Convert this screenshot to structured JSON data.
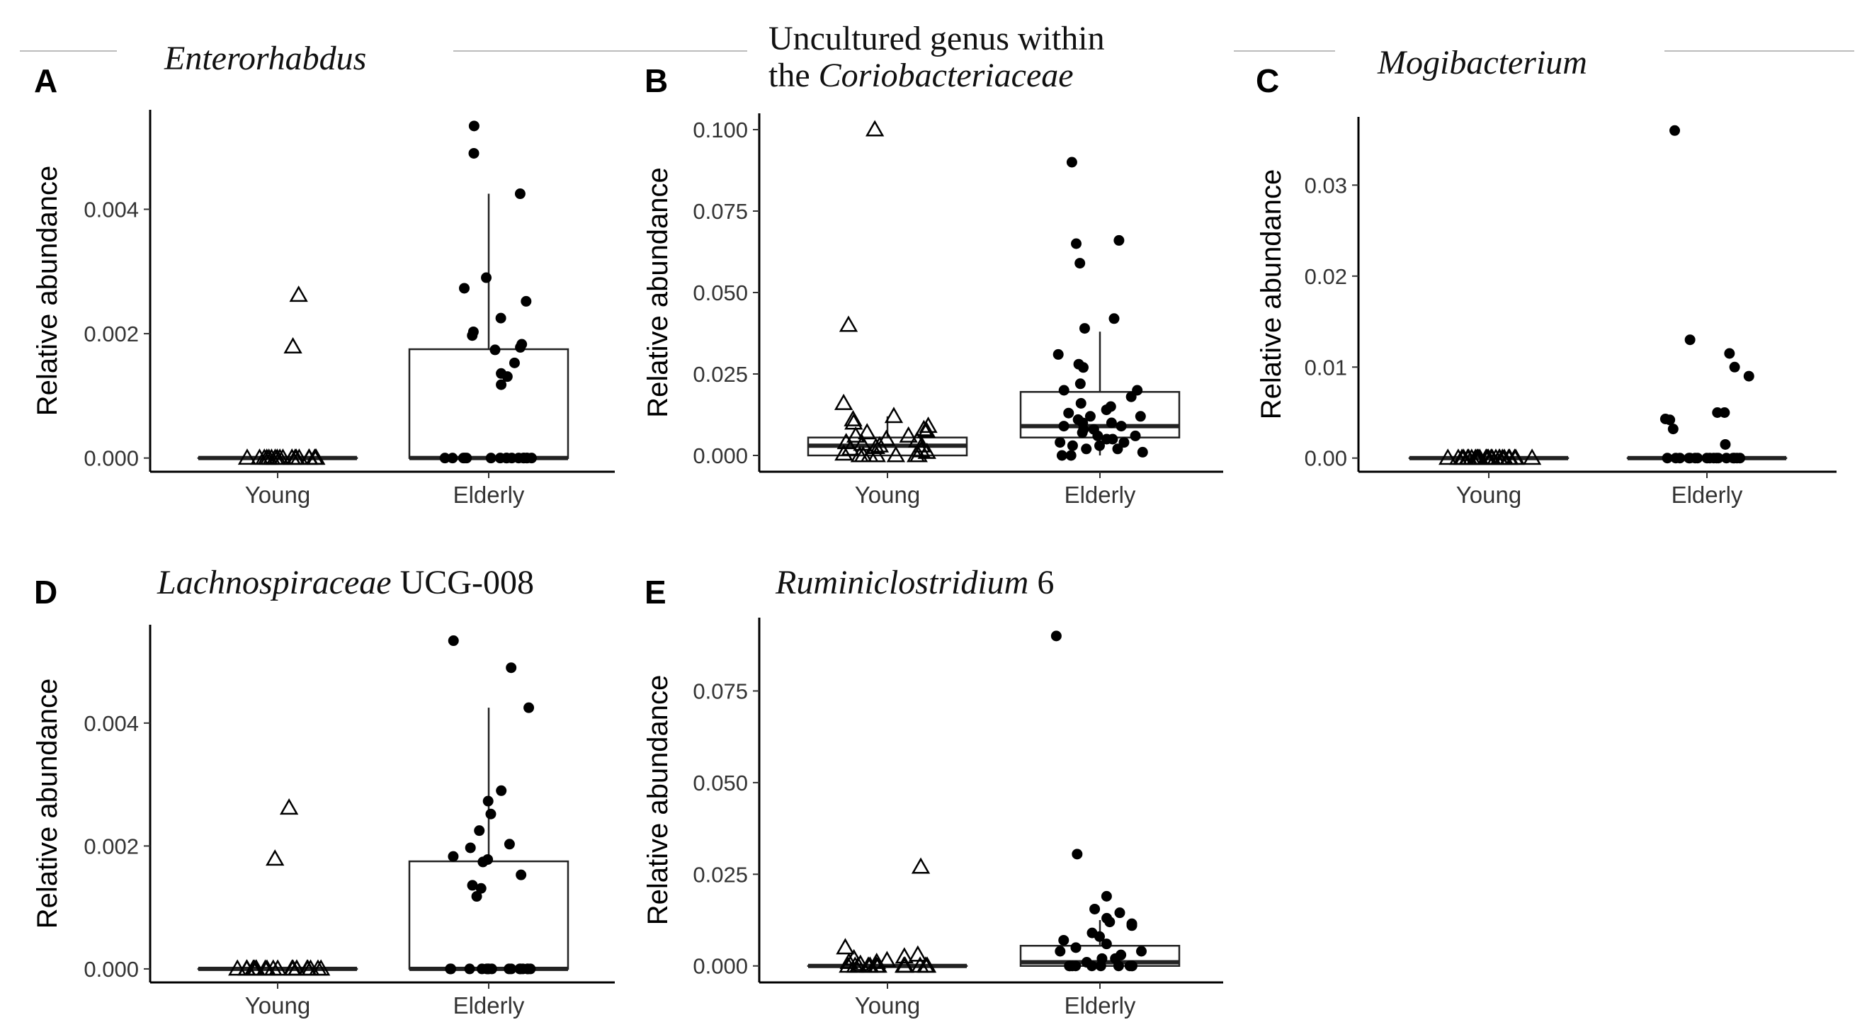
{
  "figure": {
    "panels": [
      "A",
      "B",
      "C",
      "D",
      "E"
    ]
  },
  "chart_data": [
    {
      "id": "A",
      "type": "box",
      "label": "A",
      "title": [
        [
          {
            "text": "Enterorhabdus",
            "italic": true
          }
        ]
      ],
      "ylabel": "Relative abundance",
      "categories": [
        "Young",
        "Elderly"
      ],
      "ylim": [
        -0.00022,
        0.0056
      ],
      "yticks": [
        0,
        0.002,
        0.004
      ],
      "ytick_labels": [
        "0.000",
        "0.002",
        "0.004"
      ],
      "series": [
        {
          "name": "Young",
          "marker": "triangle-open",
          "box": {
            "q1": 0,
            "median": 0,
            "q3": 0,
            "whisker_low": 0,
            "whisker_high": 0
          },
          "points": [
            0.00262,
            0.00179,
            0,
            0,
            0,
            0,
            0,
            0,
            0,
            0,
            0,
            0,
            0,
            0,
            0,
            0,
            0,
            0,
            0,
            0,
            0,
            0
          ]
        },
        {
          "name": "Elderly",
          "marker": "circle-filled",
          "box": {
            "q1": 0,
            "median": 0,
            "q3": 0.00175,
            "whisker_low": 0,
            "whisker_high": 0.00425
          },
          "points": [
            0.00534,
            0.0049,
            0.00425,
            0.0029,
            0.00273,
            0.00252,
            0.00225,
            0.00203,
            0.00197,
            0.00183,
            0.00178,
            0.00174,
            0.00153,
            0.00136,
            0.00131,
            0.00118,
            0,
            0,
            0,
            0,
            0,
            0,
            0,
            0,
            0,
            0,
            0,
            0,
            0,
            0,
            0,
            0
          ]
        }
      ]
    },
    {
      "id": "B",
      "type": "box",
      "label": "B",
      "title": [
        [
          {
            "text": "Uncultured genus within",
            "italic": false
          }
        ],
        [
          {
            "text": "the ",
            "italic": false
          },
          {
            "text": "Coriobacteriaceae",
            "italic": true
          }
        ]
      ],
      "ylabel": "Relative abundance",
      "categories": [
        "Young",
        "Elderly"
      ],
      "ylim": [
        -0.005,
        0.105
      ],
      "yticks": [
        0,
        0.025,
        0.05,
        0.075,
        0.1
      ],
      "ytick_labels": [
        "0.000",
        "0.025",
        "0.050",
        "0.075",
        "0.100"
      ],
      "series": [
        {
          "name": "Young",
          "marker": "triangle-open",
          "box": {
            "q1": 0,
            "median": 0.003,
            "q3": 0.0055,
            "whisker_low": 0,
            "whisker_high": 0.012
          },
          "points": [
            0.1,
            0.04,
            0.016,
            0.012,
            0.011,
            0.01,
            0.009,
            0.008,
            0.0075,
            0.007,
            0.006,
            0.006,
            0.005,
            0.0045,
            0.004,
            0.0035,
            0.003,
            0.003,
            0.0025,
            0.002,
            0.0015,
            0.001,
            0.0005,
            0,
            0,
            0,
            0,
            0,
            0,
            0
          ]
        },
        {
          "name": "Elderly",
          "marker": "circle-filled",
          "box": {
            "q1": 0.0055,
            "median": 0.009,
            "q3": 0.0195,
            "whisker_low": 0,
            "whisker_high": 0.038
          },
          "points": [
            0.09,
            0.066,
            0.065,
            0.059,
            0.042,
            0.039,
            0.031,
            0.028,
            0.027,
            0.022,
            0.02,
            0.02,
            0.018,
            0.016,
            0.015,
            0.014,
            0.013,
            0.012,
            0.012,
            0.011,
            0.01,
            0.01,
            0.009,
            0.009,
            0.008,
            0.008,
            0.007,
            0.006,
            0.006,
            0.005,
            0.005,
            0.004,
            0.004,
            0.003,
            0.003,
            0.002,
            0.002,
            0.001,
            0,
            0
          ]
        }
      ]
    },
    {
      "id": "C",
      "type": "box",
      "label": "C",
      "title": [
        [
          {
            "text": "Mogibacterium",
            "italic": true
          }
        ]
      ],
      "ylabel": "Relative abundance",
      "categories": [
        "Young",
        "Elderly"
      ],
      "ylim": [
        -0.0015,
        0.0375
      ],
      "yticks": [
        0,
        0.01,
        0.02,
        0.03
      ],
      "ytick_labels": [
        "0.00",
        "0.01",
        "0.02",
        "0.03"
      ],
      "series": [
        {
          "name": "Young",
          "marker": "triangle-open",
          "box": {
            "q1": 0,
            "median": 0,
            "q3": 0,
            "whisker_low": 0,
            "whisker_high": 0
          },
          "points": [
            0,
            0,
            0,
            0,
            0,
            0,
            0,
            0,
            0,
            0,
            0,
            0,
            0,
            0,
            0,
            0,
            0,
            0,
            0,
            0,
            0,
            0,
            0,
            0,
            0,
            0
          ]
        },
        {
          "name": "Elderly",
          "marker": "circle-filled",
          "box": {
            "q1": 0,
            "median": 0,
            "q3": 0,
            "whisker_low": 0,
            "whisker_high": 0
          },
          "points": [
            0.036,
            0.013,
            0.0115,
            0.01,
            0.009,
            0.005,
            0.005,
            0.0043,
            0.0042,
            0.0032,
            0.0015,
            0,
            0,
            0,
            0,
            0,
            0,
            0,
            0,
            0,
            0,
            0,
            0,
            0,
            0,
            0,
            0,
            0
          ]
        }
      ]
    },
    {
      "id": "D",
      "type": "box",
      "label": "D",
      "title": [
        [
          {
            "text": "Lachnospiraceae",
            "italic": true
          },
          {
            "text": " UCG-008",
            "italic": false
          }
        ]
      ],
      "ylabel": "Relative abundance",
      "categories": [
        "Young",
        "Elderly"
      ],
      "ylim": [
        -0.00022,
        0.0056
      ],
      "yticks": [
        0,
        0.002,
        0.004
      ],
      "ytick_labels": [
        "0.000",
        "0.002",
        "0.004"
      ],
      "series": [
        {
          "name": "Young",
          "marker": "triangle-open",
          "box": {
            "q1": 0,
            "median": 0,
            "q3": 0,
            "whisker_low": 0,
            "whisker_high": 0
          },
          "points": [
            0.00262,
            0.00179,
            0,
            0,
            0,
            0,
            0,
            0,
            0,
            0,
            0,
            0,
            0,
            0,
            0,
            0,
            0,
            0,
            0,
            0,
            0,
            0
          ]
        },
        {
          "name": "Elderly",
          "marker": "circle-filled",
          "box": {
            "q1": 0,
            "median": 0,
            "q3": 0.00175,
            "whisker_low": 0,
            "whisker_high": 0.00425
          },
          "points": [
            0.00534,
            0.0049,
            0.00425,
            0.0029,
            0.00273,
            0.00252,
            0.00225,
            0.00203,
            0.00197,
            0.00183,
            0.00178,
            0.00174,
            0.00153,
            0.00136,
            0.00131,
            0.00118,
            0,
            0,
            0,
            0,
            0,
            0,
            0,
            0,
            0,
            0,
            0,
            0,
            0,
            0,
            0,
            0
          ]
        }
      ]
    },
    {
      "id": "E",
      "type": "box",
      "label": "E",
      "title": [
        [
          {
            "text": "Ruminiclostridium",
            "italic": true
          },
          {
            "text": " 6",
            "italic": false
          }
        ]
      ],
      "ylabel": "Relative abundance",
      "categories": [
        "Young",
        "Elderly"
      ],
      "ylim": [
        -0.0045,
        0.095
      ],
      "yticks": [
        0,
        0.025,
        0.05,
        0.075
      ],
      "ytick_labels": [
        "0.000",
        "0.025",
        "0.050",
        "0.075"
      ],
      "series": [
        {
          "name": "Young",
          "marker": "triangle-open",
          "box": {
            "q1": 0,
            "median": 0,
            "q3": 0,
            "whisker_low": 0,
            "whisker_high": 0
          },
          "points": [
            0.027,
            0.005,
            0.003,
            0.0025,
            0.002,
            0.0015,
            0.001,
            0.001,
            0.0005,
            0,
            0,
            0,
            0,
            0,
            0,
            0,
            0,
            0,
            0,
            0,
            0,
            0
          ]
        },
        {
          "name": "Elderly",
          "marker": "circle-filled",
          "box": {
            "q1": 0,
            "median": 0.001,
            "q3": 0.0055,
            "whisker_low": 0,
            "whisker_high": 0.0125
          },
          "points": [
            0.09,
            0.0305,
            0.019,
            0.0155,
            0.0145,
            0.013,
            0.012,
            0.0115,
            0.011,
            0.009,
            0.008,
            0.007,
            0.006,
            0.005,
            0.004,
            0.004,
            0.003,
            0.002,
            0.002,
            0.001,
            0,
            0,
            0,
            0,
            0,
            0,
            0,
            0,
            0,
            0
          ]
        }
      ]
    }
  ]
}
